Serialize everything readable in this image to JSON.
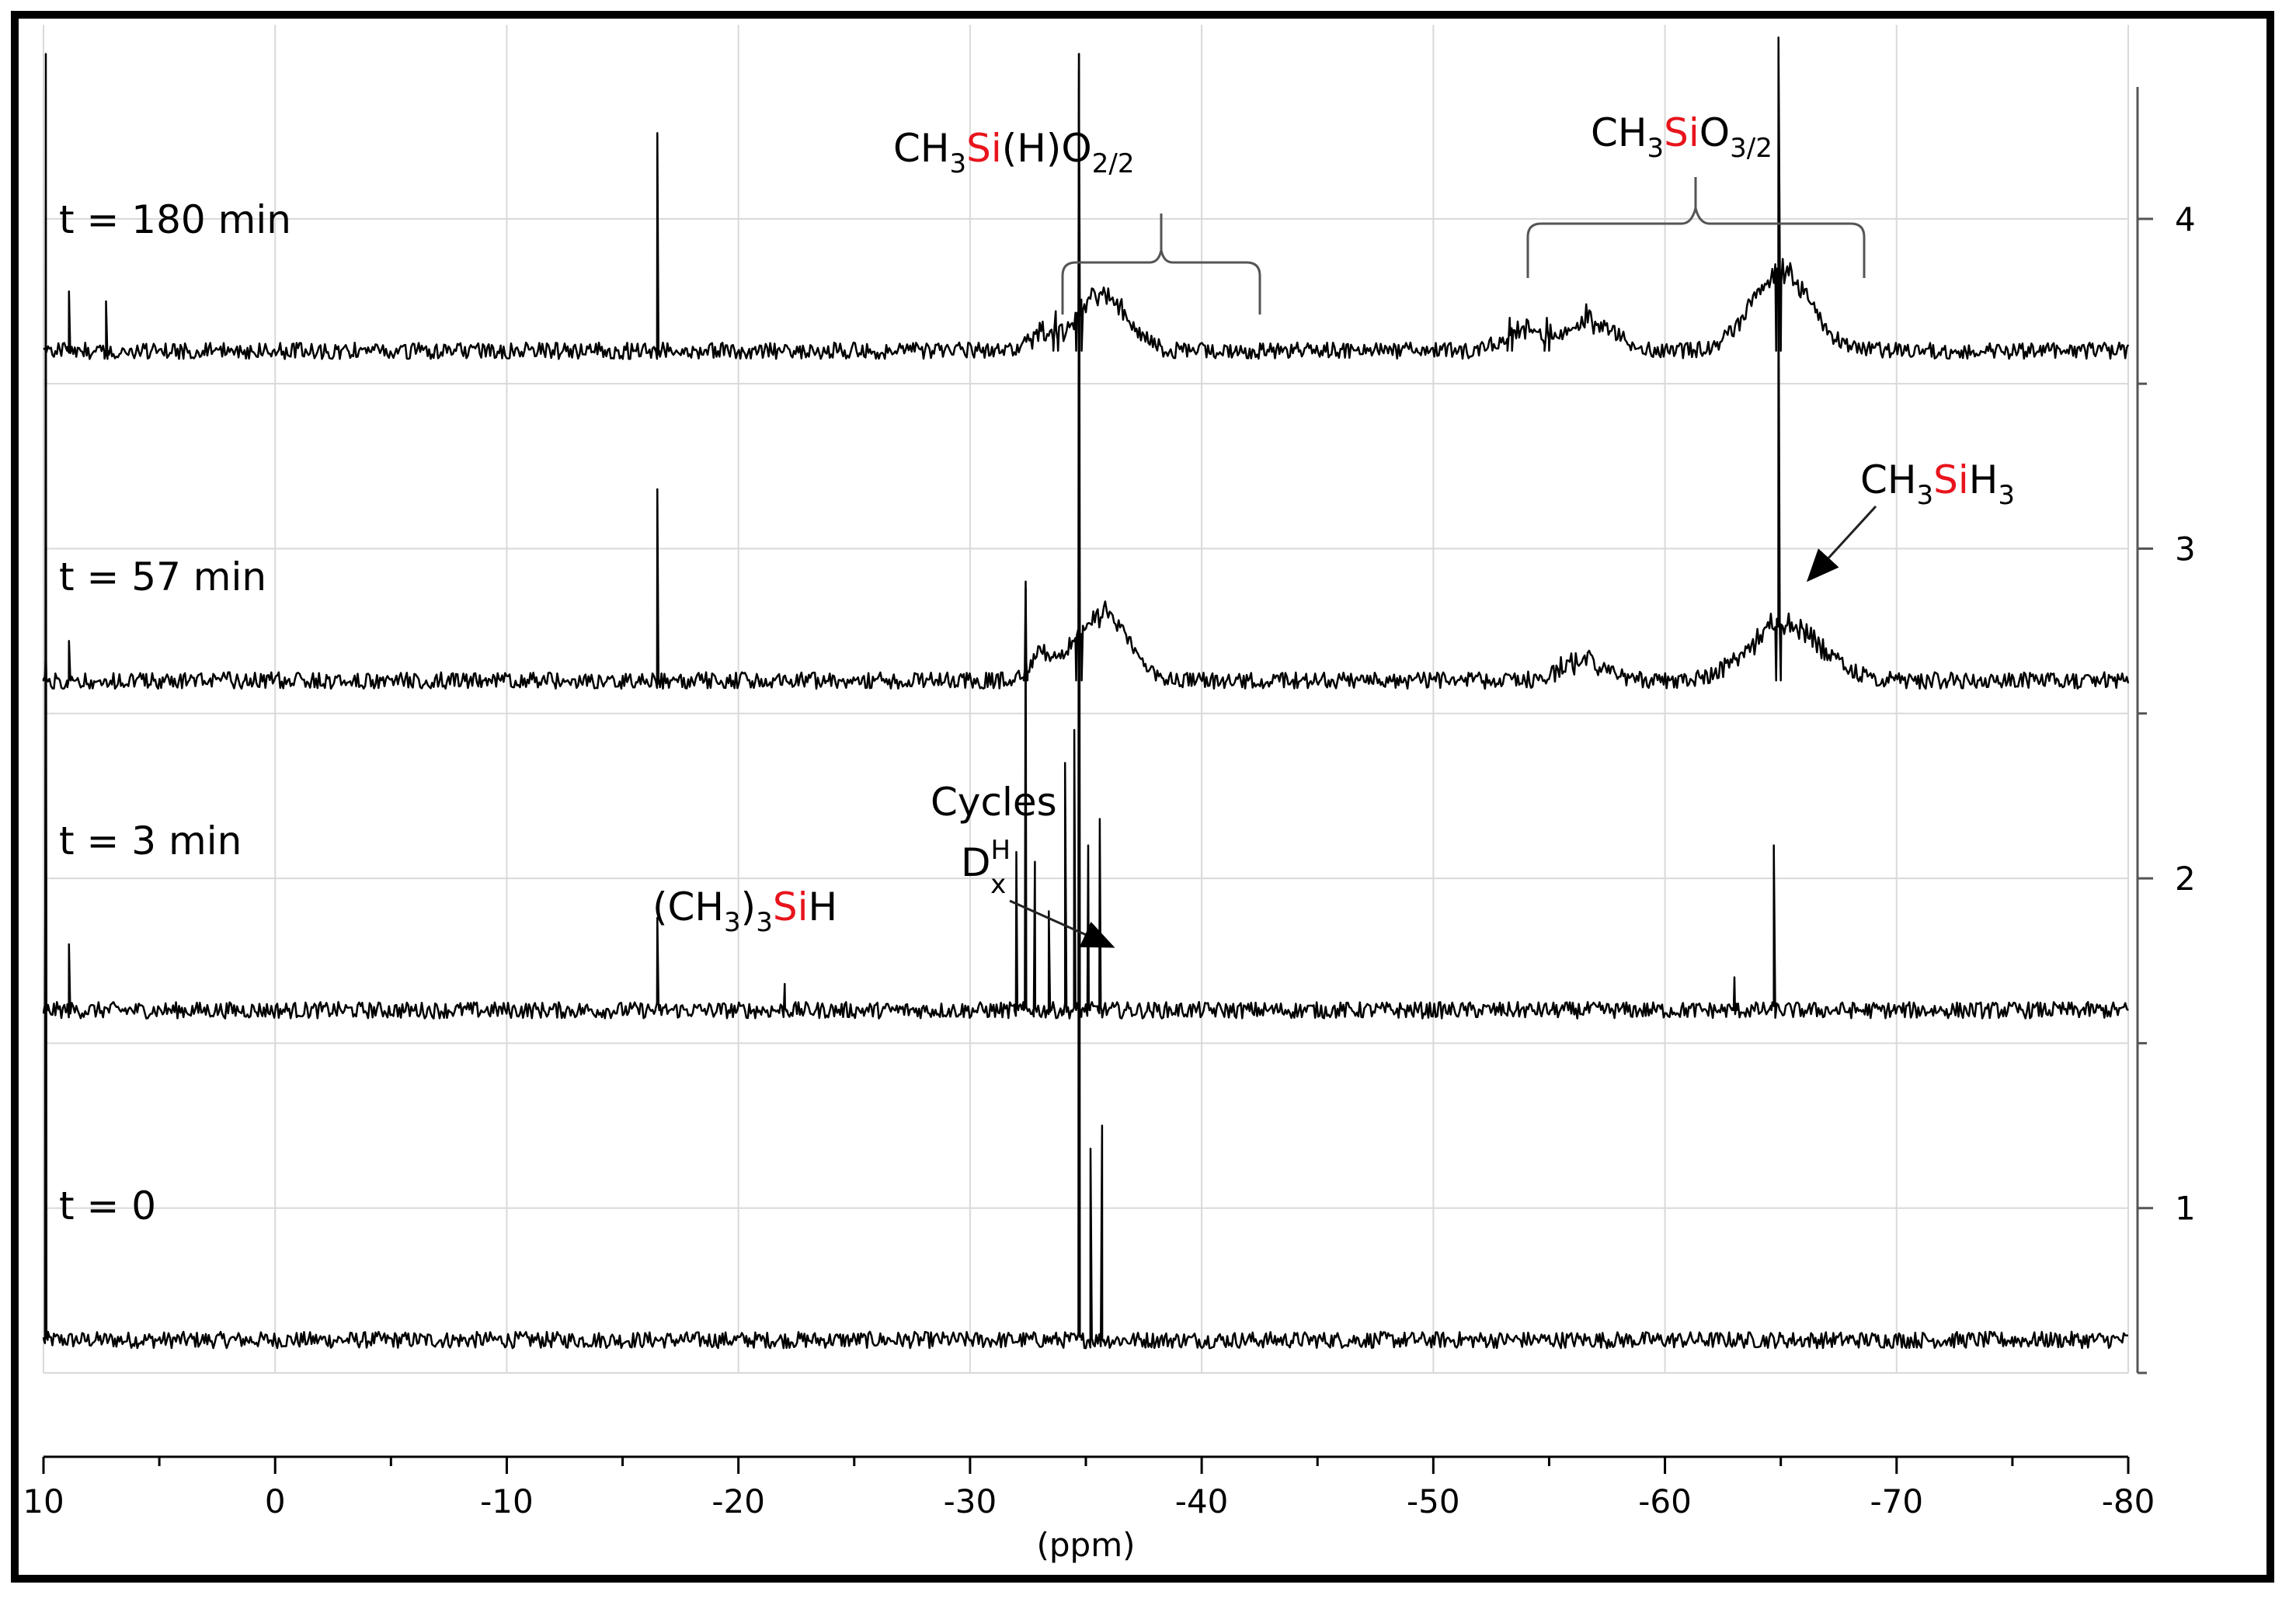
{
  "chart_data": {
    "type": "line",
    "title": "",
    "xlabel": "(ppm)",
    "ylabel": "",
    "xlim": [
      10,
      -80
    ],
    "x_reversed": true,
    "ylim": [
      0.5,
      4.4
    ],
    "grid": true,
    "x_ticks": [
      10,
      0,
      -10,
      -20,
      -30,
      -40,
      -50,
      -60,
      -70,
      -80
    ],
    "x_tick_labels": [
      "10",
      "0",
      "-10",
      "-20",
      "-30",
      "-40",
      "-50",
      "-60",
      "-70",
      "-80"
    ],
    "y_ticks": [
      1,
      2,
      3,
      4
    ],
    "y_tick_labels": [
      "1",
      "2",
      "3",
      "4"
    ],
    "series": [
      {
        "name": "t = 0",
        "baseline": 0.6,
        "peaks": [
          {
            "ppm": 9.9,
            "height": 3.9,
            "width": 0.08
          },
          {
            "ppm": -34.7,
            "height": 3.9,
            "width": 0.12
          },
          {
            "ppm": -35.2,
            "height": 0.58,
            "width": 0.08
          },
          {
            "ppm": -35.7,
            "height": 0.65,
            "width": 0.08
          }
        ],
        "humps": []
      },
      {
        "name": "t = 3 min",
        "baseline": 1.6,
        "peaks": [
          {
            "ppm": 9.9,
            "height": 0.95,
            "width": 0.08
          },
          {
            "ppm": 8.9,
            "height": 0.2,
            "width": 0.08
          },
          {
            "ppm": -16.5,
            "height": 0.28,
            "width": 0.08
          },
          {
            "ppm": -22.0,
            "height": 0.08,
            "width": 0.1
          },
          {
            "ppm": -32.0,
            "height": 0.48,
            "width": 0.08
          },
          {
            "ppm": -32.4,
            "height": 1.28,
            "width": 0.08
          },
          {
            "ppm": -32.8,
            "height": 0.45,
            "width": 0.08
          },
          {
            "ppm": -33.4,
            "height": 0.3,
            "width": 0.08
          },
          {
            "ppm": -34.1,
            "height": 0.75,
            "width": 0.08
          },
          {
            "ppm": -34.5,
            "height": 0.85,
            "width": 0.08
          },
          {
            "ppm": -34.7,
            "height": 2.9,
            "width": 0.12
          },
          {
            "ppm": -35.1,
            "height": 0.5,
            "width": 0.08
          },
          {
            "ppm": -35.6,
            "height": 0.58,
            "width": 0.08
          },
          {
            "ppm": -63.0,
            "height": 0.1,
            "width": 0.1
          },
          {
            "ppm": -64.7,
            "height": 0.5,
            "width": 0.1
          }
        ],
        "humps": []
      },
      {
        "name": "t = 57 min",
        "baseline": 2.6,
        "peaks": [
          {
            "ppm": 9.9,
            "height": 0.08,
            "width": 0.1
          },
          {
            "ppm": 8.9,
            "height": 0.12,
            "width": 0.08
          },
          {
            "ppm": -16.5,
            "height": 0.58,
            "width": 0.08
          },
          {
            "ppm": -32.4,
            "height": 0.3,
            "width": 0.08
          },
          {
            "ppm": -34.7,
            "height": 1.85,
            "width": 0.12
          },
          {
            "ppm": -64.9,
            "height": 1.25,
            "width": 0.1
          }
        ],
        "humps": [
          {
            "ppm": -35.7,
            "height": 0.2,
            "width": 1.6
          },
          {
            "ppm": -33.0,
            "height": 0.06,
            "width": 0.8
          },
          {
            "ppm": -56.4,
            "height": 0.06,
            "width": 1.3
          },
          {
            "ppm": -65.2,
            "height": 0.17,
            "width": 2.2
          }
        ]
      },
      {
        "name": "t = 180 min",
        "baseline": 3.6,
        "peaks": [
          {
            "ppm": 8.9,
            "height": 0.18,
            "width": 0.08
          },
          {
            "ppm": 7.3,
            "height": 0.15,
            "width": 0.08
          },
          {
            "ppm": -16.5,
            "height": 0.66,
            "width": 0.08
          },
          {
            "ppm": -33.7,
            "height": 0.12,
            "width": 0.1
          },
          {
            "ppm": -34.7,
            "height": 0.8,
            "width": 0.12
          },
          {
            "ppm": -53.3,
            "height": 0.1,
            "width": 0.1
          },
          {
            "ppm": -54.9,
            "height": 0.1,
            "width": 0.1
          },
          {
            "ppm": -64.9,
            "height": 0.95,
            "width": 0.1
          }
        ],
        "humps": [
          {
            "ppm": -35.7,
            "height": 0.17,
            "width": 1.5
          },
          {
            "ppm": -33.0,
            "height": 0.05,
            "width": 0.8
          },
          {
            "ppm": -53.9,
            "height": 0.07,
            "width": 1.1
          },
          {
            "ppm": -56.8,
            "height": 0.1,
            "width": 1.4
          },
          {
            "ppm": -65.0,
            "height": 0.24,
            "width": 1.8
          }
        ]
      }
    ],
    "annotations": [
      {
        "main": "CH",
        "sub1": "3",
        "red": "Si",
        "rest": "(H)O",
        "sub2": "2/2"
      },
      {
        "main": "CH",
        "sub1": "3",
        "red": "Si",
        "rest": "O",
        "sub2": "3/2"
      },
      {
        "main": "CH",
        "sub1": "3",
        "red": "Si",
        "rest": "H",
        "sub2": "3"
      },
      {
        "line1": "Cycles",
        "line2_main": "D",
        "line2_sup": "H",
        "line2_sub": "x"
      },
      {
        "pre": "(CH",
        "sub1": "3",
        "mid": ")",
        "sub2": "3",
        "red": "Si",
        "rest": "H"
      }
    ],
    "colors": {
      "trace": "#000000",
      "grid": "#d9d9d9",
      "highlight": "#e8141c"
    }
  }
}
